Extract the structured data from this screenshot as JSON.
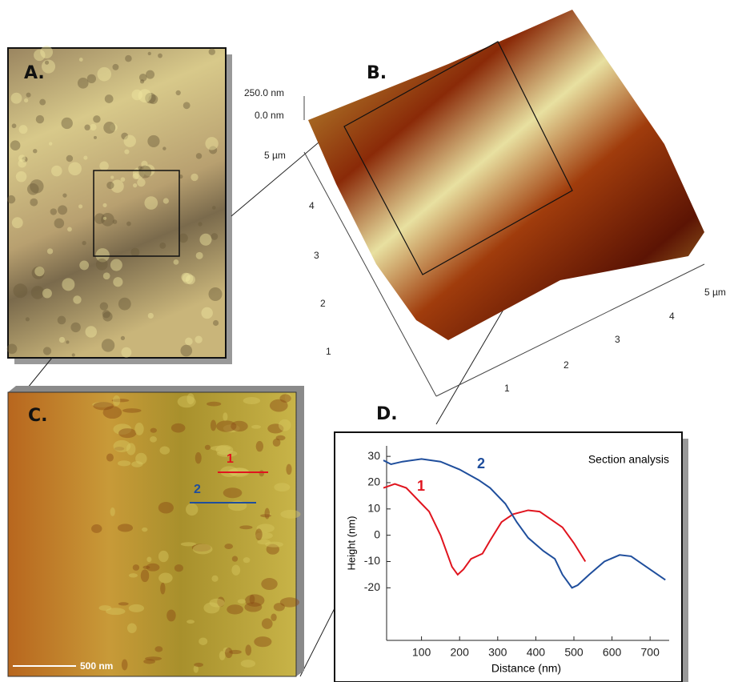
{
  "panels": {
    "a": "A.",
    "b": "B.",
    "c": "C.",
    "d": "D."
  },
  "panel_b": {
    "z_labels": [
      "250.0 nm",
      "0.0 nm"
    ],
    "y_axis_labels": [
      "5 µm",
      "4",
      "3",
      "2",
      "1"
    ],
    "x_axis_labels": [
      "1",
      "2",
      "3",
      "4",
      "5 µm"
    ]
  },
  "panel_c": {
    "line_labels": [
      "1",
      "2"
    ],
    "scale_bar": "500 nm"
  },
  "chart_data": {
    "type": "line",
    "annotation": "Section analysis",
    "xlabel": "Distance (nm)",
    "ylabel": "Height (nm)",
    "xlim": [
      0,
      750
    ],
    "ylim": [
      -40,
      34
    ],
    "xticks": [
      100,
      200,
      300,
      400,
      500,
      600,
      700
    ],
    "yticks": [
      -20,
      -10,
      0,
      10,
      20,
      30
    ],
    "series": [
      {
        "name": "1",
        "color": "#e0141e",
        "x": [
          0,
          30,
          60,
          100,
          120,
          150,
          180,
          195,
          210,
          230,
          260,
          280,
          310,
          340,
          380,
          410,
          440,
          470,
          500,
          530
        ],
        "values": [
          18,
          19.5,
          18,
          12,
          9,
          0,
          -12,
          -15,
          -13,
          -9,
          -7,
          -2,
          5,
          8,
          9.5,
          9,
          6,
          3,
          -3,
          -10
        ]
      },
      {
        "name": "2",
        "color": "#1f4e9c",
        "x": [
          0,
          20,
          50,
          100,
          150,
          200,
          250,
          280,
          320,
          350,
          380,
          420,
          450,
          470,
          495,
          510,
          540,
          580,
          620,
          650,
          690,
          740
        ],
        "values": [
          28.5,
          27,
          28,
          29,
          28,
          25,
          21,
          18,
          12,
          5,
          -1,
          -6,
          -9,
          -15,
          -20,
          -19,
          -15,
          -10,
          -7.5,
          -8,
          -12,
          -17
        ]
      }
    ]
  }
}
